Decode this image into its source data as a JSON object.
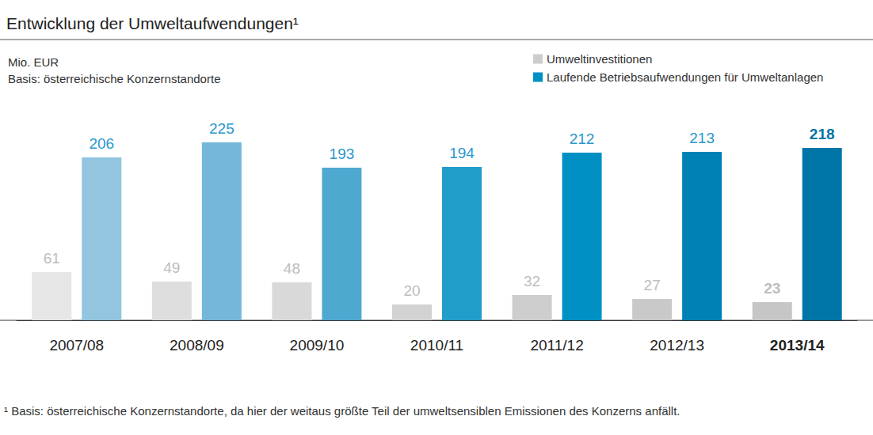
{
  "chart_data": {
    "type": "bar",
    "title": "Entwicklung der Umweltaufwendungen¹",
    "units": "Mio. EUR",
    "subtitle": "Basis: österreichische Konzernstandorte",
    "footnote": "¹ Basis: österreichische Konzernstandorte, da hier der weitaus größte Teil der umweltsensiblen Emissionen des Konzerns anfällt.",
    "categories": [
      "2007/08",
      "2008/09",
      "2009/10",
      "2010/11",
      "2011/12",
      "2012/13",
      "2013/14"
    ],
    "series": [
      {
        "name": "Umweltinvestitionen",
        "color": "#cdcdcd",
        "colors": [
          "#e6e6e6",
          "#dedede",
          "#d9d9d9",
          "#d2d2d2",
          "#cdcdcd",
          "#c9c9c9",
          "#c6c6c6"
        ],
        "values": [
          61,
          49,
          48,
          20,
          32,
          27,
          23
        ]
      },
      {
        "name": "Laufende Betriebsaufwendungen für Umweltanlagen",
        "color": "#0090c4",
        "colors": [
          "#93c4e0",
          "#75b7da",
          "#4ea9d1",
          "#219dca",
          "#0090c4",
          "#0081b6",
          "#0075a8"
        ],
        "values": [
          206,
          225,
          193,
          194,
          212,
          213,
          218
        ]
      }
    ],
    "ylim": [
      0,
      250
    ],
    "yticks": [
      0,
      250
    ],
    "grid": false,
    "legend": "upper right",
    "data_labels": true,
    "tick_labels": "x"
  }
}
